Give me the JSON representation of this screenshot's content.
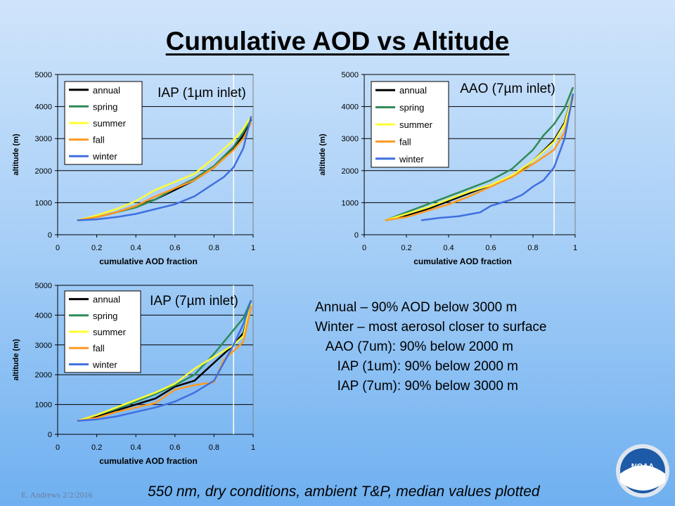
{
  "slide": {
    "title": "Cumulative AOD vs Altitude",
    "notes": [
      "Annual – 90% AOD below 3000 m",
      "",
      "Winter – most aerosol closer to surface",
      "   AAO (7um): 90% below 2000 m",
      "      IAP (1um): 90% below 2000 m",
      "      IAP (7um): 90% below 3000 m"
    ],
    "footer_credit": "E. Andrews   2/2/2016",
    "footer_note": "550 nm, dry conditions, ambient T&P, median values plotted",
    "logo_text": "NOAA",
    "colors": {
      "annual": "#000000",
      "spring": "#2e8b57",
      "summer": "#ffff33",
      "fall": "#ff9922",
      "winter": "#3f6fe0",
      "refline": "#fffff0"
    }
  },
  "chart_data": [
    {
      "type": "line",
      "title": "IAP (1µm inlet)",
      "xlabel": "cumulative AOD fraction",
      "ylabel": "altitude (m)",
      "xlim": [
        0,
        1
      ],
      "ylim": [
        0,
        5000
      ],
      "xticks": [
        "0",
        "0.2",
        "0.4",
        "0.6",
        "0.8",
        "1"
      ],
      "yticks": [
        "0",
        "1000",
        "2000",
        "3000",
        "4000",
        "5000"
      ],
      "grid": "horizontal",
      "legend": "top-left",
      "refline_x": 0.9,
      "series": [
        {
          "name": "annual",
          "x": [
            0.1,
            0.2,
            0.3,
            0.4,
            0.5,
            0.6,
            0.7,
            0.8,
            0.9,
            0.95,
            0.99
          ],
          "y": [
            450,
            550,
            700,
            900,
            1100,
            1400,
            1700,
            2100,
            2700,
            3100,
            3600
          ]
        },
        {
          "name": "spring",
          "x": [
            0.1,
            0.2,
            0.3,
            0.4,
            0.5,
            0.6,
            0.7,
            0.8,
            0.9,
            0.95,
            0.99
          ],
          "y": [
            450,
            550,
            700,
            850,
            1100,
            1450,
            1750,
            2150,
            2750,
            3200,
            3650
          ]
        },
        {
          "name": "summer",
          "x": [
            0.1,
            0.2,
            0.3,
            0.4,
            0.5,
            0.6,
            0.7,
            0.8,
            0.9,
            0.95,
            0.99
          ],
          "y": [
            450,
            600,
            800,
            1050,
            1400,
            1650,
            1900,
            2400,
            2950,
            3300,
            3700
          ]
        },
        {
          "name": "fall",
          "x": [
            0.1,
            0.2,
            0.3,
            0.4,
            0.5,
            0.6,
            0.7,
            0.8,
            0.9,
            0.95,
            0.99
          ],
          "y": [
            450,
            550,
            700,
            900,
            1200,
            1450,
            1700,
            2100,
            2650,
            3000,
            3500
          ]
        },
        {
          "name": "winter",
          "x": [
            0.1,
            0.2,
            0.3,
            0.4,
            0.5,
            0.6,
            0.7,
            0.8,
            0.85,
            0.9,
            0.95,
            0.99
          ],
          "y": [
            450,
            480,
            550,
            650,
            800,
            950,
            1200,
            1600,
            1800,
            2100,
            2700,
            3700
          ]
        }
      ]
    },
    {
      "type": "line",
      "title": "AAO (7µm inlet)",
      "xlabel": "cumulative AOD fraction",
      "ylabel": "altitude (m)",
      "xlim": [
        0,
        1
      ],
      "ylim": [
        0,
        5000
      ],
      "xticks": [
        "0",
        "0.2",
        "0.4",
        "0.6",
        "0.8",
        "1"
      ],
      "yticks": [
        "0",
        "1000",
        "2000",
        "3000",
        "4000",
        "5000"
      ],
      "grid": "horizontal",
      "legend": "top-left",
      "refline_x": 0.9,
      "series": [
        {
          "name": "annual",
          "x": [
            0.1,
            0.2,
            0.3,
            0.4,
            0.5,
            0.6,
            0.7,
            0.8,
            0.9,
            0.95,
            0.99
          ],
          "y": [
            450,
            600,
            800,
            1050,
            1300,
            1550,
            1800,
            2300,
            2950,
            3500,
            4400
          ]
        },
        {
          "name": "spring",
          "x": [
            0.1,
            0.2,
            0.3,
            0.4,
            0.5,
            0.6,
            0.7,
            0.8,
            0.85,
            0.9,
            0.95,
            0.99
          ],
          "y": [
            450,
            700,
            950,
            1200,
            1450,
            1700,
            2050,
            2650,
            3100,
            3450,
            3950,
            4600
          ]
        },
        {
          "name": "summer",
          "x": [
            0.1,
            0.2,
            0.3,
            0.4,
            0.5,
            0.6,
            0.7,
            0.8,
            0.9,
            0.95,
            0.99
          ],
          "y": [
            450,
            650,
            850,
            1100,
            1350,
            1550,
            1850,
            2300,
            2900,
            3450,
            4400
          ]
        },
        {
          "name": "fall",
          "x": [
            0.1,
            0.2,
            0.3,
            0.4,
            0.5,
            0.6,
            0.7,
            0.8,
            0.9,
            0.95,
            0.99
          ],
          "y": [
            450,
            550,
            750,
            950,
            1200,
            1500,
            1800,
            2200,
            2650,
            3200,
            4300
          ]
        },
        {
          "name": "winter",
          "x": [
            0.27,
            0.35,
            0.45,
            0.55,
            0.6,
            0.7,
            0.75,
            0.8,
            0.85,
            0.9,
            0.95,
            0.99
          ],
          "y": [
            450,
            520,
            580,
            700,
            900,
            1100,
            1250,
            1500,
            1700,
            2100,
            3000,
            4400
          ]
        }
      ]
    },
    {
      "type": "line",
      "title": "IAP (7µm inlet)",
      "xlabel": "cumulative AOD fraction",
      "ylabel": "altitude (m)",
      "xlim": [
        0,
        1
      ],
      "ylim": [
        0,
        5000
      ],
      "xticks": [
        "0",
        "0.2",
        "0.4",
        "0.6",
        "0.8",
        "1"
      ],
      "yticks": [
        "0",
        "1000",
        "2000",
        "3000",
        "4000",
        "5000"
      ],
      "grid": "horizontal",
      "legend": "top-left",
      "refline_x": 0.9,
      "series": [
        {
          "name": "annual",
          "x": [
            0.1,
            0.2,
            0.3,
            0.4,
            0.5,
            0.6,
            0.7,
            0.8,
            0.9,
            0.95,
            0.99
          ],
          "y": [
            450,
            600,
            800,
            1000,
            1200,
            1600,
            1800,
            2400,
            3000,
            3400,
            4300
          ]
        },
        {
          "name": "spring",
          "x": [
            0.1,
            0.2,
            0.3,
            0.4,
            0.5,
            0.6,
            0.7,
            0.8,
            0.85,
            0.9,
            0.95,
            0.99
          ],
          "y": [
            450,
            650,
            850,
            1100,
            1350,
            1650,
            2000,
            2700,
            3100,
            3500,
            3900,
            4500
          ]
        },
        {
          "name": "summer",
          "x": [
            0.1,
            0.2,
            0.3,
            0.4,
            0.5,
            0.6,
            0.7,
            0.8,
            0.9,
            0.95,
            0.99
          ],
          "y": [
            450,
            650,
            900,
            1150,
            1400,
            1700,
            2200,
            2600,
            3000,
            3300,
            4400
          ]
        },
        {
          "name": "fall",
          "x": [
            0.1,
            0.2,
            0.3,
            0.4,
            0.5,
            0.6,
            0.7,
            0.8,
            0.85,
            0.9,
            0.95,
            0.99
          ],
          "y": [
            450,
            550,
            750,
            900,
            1050,
            1500,
            1650,
            1750,
            2500,
            2800,
            3100,
            4300
          ]
        },
        {
          "name": "winter",
          "x": [
            0.1,
            0.2,
            0.3,
            0.4,
            0.5,
            0.6,
            0.7,
            0.8,
            0.85,
            0.9,
            0.95,
            0.99
          ],
          "y": [
            450,
            500,
            600,
            750,
            900,
            1100,
            1400,
            1800,
            2400,
            3000,
            3700,
            4500
          ]
        }
      ]
    }
  ]
}
